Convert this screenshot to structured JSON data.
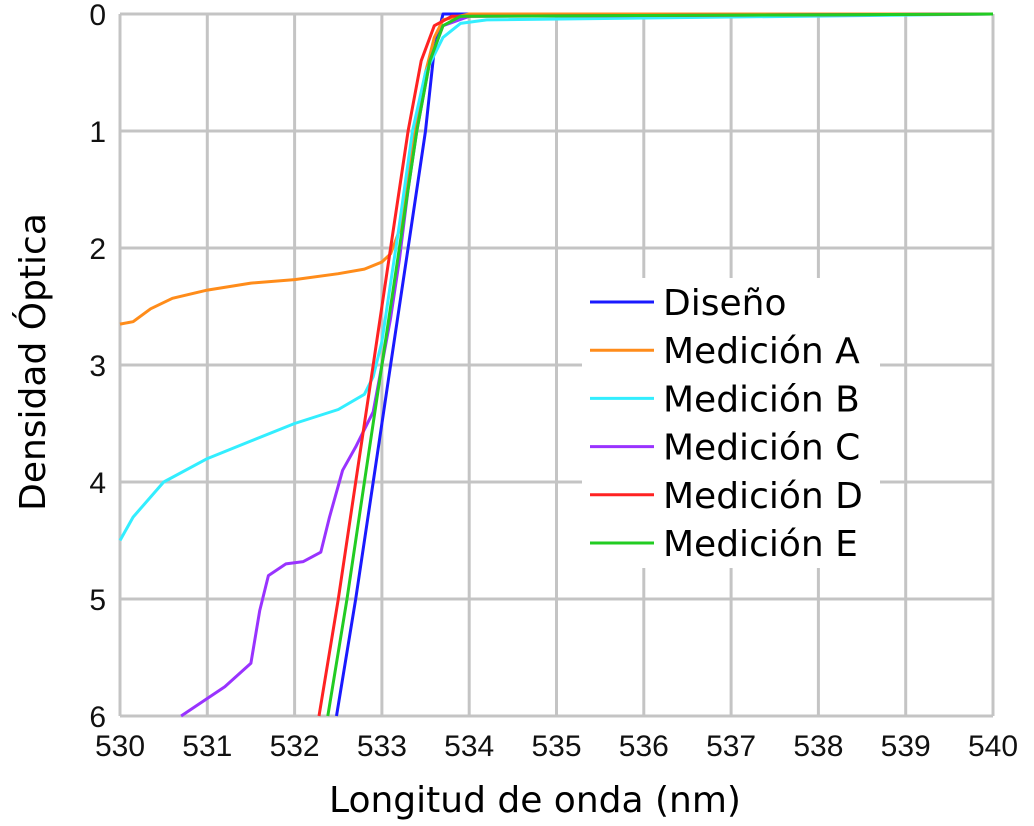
{
  "chart_data": {
    "type": "line",
    "xlabel": "Longitud de onda (nm)",
    "ylabel": "Densidad Óptica",
    "xlim": [
      530,
      540
    ],
    "ylim": [
      0,
      6
    ],
    "y_inverted": true,
    "grid": true,
    "legend_placement": "center-right",
    "x_ticks": [
      "530",
      "531",
      "532",
      "533",
      "534",
      "535",
      "536",
      "537",
      "538",
      "539",
      "540"
    ],
    "y_ticks": [
      "0",
      "1",
      "2",
      "3",
      "4",
      "5",
      "6"
    ],
    "series": [
      {
        "name": "Diseño",
        "color": "#1a1aff",
        "points": [
          [
            532.48,
            6.0
          ],
          [
            532.7,
            5.0
          ],
          [
            532.9,
            4.0
          ],
          [
            533.1,
            3.0
          ],
          [
            533.3,
            2.0
          ],
          [
            533.5,
            1.0
          ],
          [
            533.6,
            0.3
          ],
          [
            533.7,
            0.0
          ],
          [
            540,
            0.0
          ]
        ]
      },
      {
        "name": "Medición A",
        "color": "#ff8c1a",
        "points": [
          [
            530.0,
            2.65
          ],
          [
            530.15,
            2.63
          ],
          [
            530.35,
            2.52
          ],
          [
            530.6,
            2.43
          ],
          [
            531.0,
            2.36
          ],
          [
            531.5,
            2.3
          ],
          [
            532.0,
            2.27
          ],
          [
            532.5,
            2.22
          ],
          [
            532.8,
            2.18
          ],
          [
            533.0,
            2.12
          ],
          [
            533.1,
            2.05
          ],
          [
            533.2,
            1.85
          ],
          [
            533.3,
            1.4
          ],
          [
            533.4,
            0.9
          ],
          [
            533.5,
            0.5
          ],
          [
            533.6,
            0.2
          ],
          [
            533.7,
            0.05
          ],
          [
            534.0,
            0.0
          ],
          [
            540,
            0.0
          ]
        ]
      },
      {
        "name": "Medición B",
        "color": "#33eeff",
        "points": [
          [
            530.0,
            4.5
          ],
          [
            530.15,
            4.3
          ],
          [
            530.5,
            4.0
          ],
          [
            531.0,
            3.8
          ],
          [
            531.5,
            3.65
          ],
          [
            532.0,
            3.5
          ],
          [
            532.5,
            3.38
          ],
          [
            532.8,
            3.25
          ],
          [
            532.9,
            3.1
          ],
          [
            533.0,
            2.8
          ],
          [
            533.1,
            2.3
          ],
          [
            533.2,
            1.8
          ],
          [
            533.35,
            1.0
          ],
          [
            533.5,
            0.5
          ],
          [
            533.7,
            0.2
          ],
          [
            533.9,
            0.08
          ],
          [
            534.2,
            0.05
          ],
          [
            540,
            0.0
          ]
        ]
      },
      {
        "name": "Medición C",
        "color": "#9933ff",
        "points": [
          [
            530.7,
            6.0
          ],
          [
            531.2,
            5.75
          ],
          [
            531.5,
            5.55
          ],
          [
            531.6,
            5.1
          ],
          [
            531.7,
            4.8
          ],
          [
            531.9,
            4.7
          ],
          [
            532.1,
            4.68
          ],
          [
            532.3,
            4.6
          ],
          [
            532.4,
            4.3
          ],
          [
            532.55,
            3.9
          ],
          [
            532.7,
            3.7
          ],
          [
            532.9,
            3.4
          ],
          [
            533.0,
            3.0
          ],
          [
            533.1,
            2.6
          ],
          [
            533.2,
            2.1
          ],
          [
            533.3,
            1.5
          ],
          [
            533.4,
            1.0
          ],
          [
            533.55,
            0.4
          ],
          [
            533.7,
            0.1
          ],
          [
            534.0,
            0.02
          ],
          [
            540,
            0.0
          ]
        ]
      },
      {
        "name": "Medición D",
        "color": "#ff2222",
        "points": [
          [
            532.28,
            6.0
          ],
          [
            532.5,
            5.0
          ],
          [
            532.7,
            4.0
          ],
          [
            532.9,
            3.0
          ],
          [
            533.1,
            2.0
          ],
          [
            533.3,
            1.0
          ],
          [
            533.45,
            0.4
          ],
          [
            533.6,
            0.1
          ],
          [
            533.8,
            0.02
          ],
          [
            540,
            0.0
          ]
        ]
      },
      {
        "name": "Medición E",
        "color": "#22cc22",
        "points": [
          [
            532.38,
            6.0
          ],
          [
            532.6,
            5.0
          ],
          [
            532.8,
            4.0
          ],
          [
            533.0,
            3.0
          ],
          [
            533.2,
            2.0
          ],
          [
            533.4,
            1.0
          ],
          [
            533.55,
            0.4
          ],
          [
            533.7,
            0.1
          ],
          [
            533.9,
            0.02
          ],
          [
            540,
            0.0
          ]
        ]
      }
    ]
  }
}
